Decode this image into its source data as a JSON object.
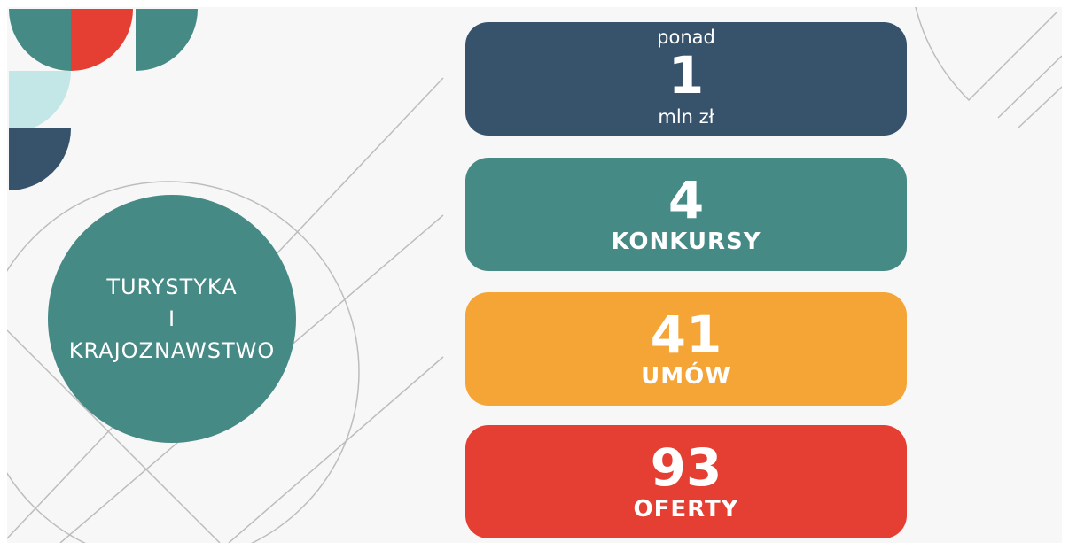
{
  "circle": {
    "lines": [
      "TURYSTYKA",
      "I",
      "KRAJOZNAWSTWO"
    ]
  },
  "cards": [
    {
      "top": "ponad",
      "value": 1,
      "bottom": "mln zł",
      "color": "#37536b"
    },
    {
      "value": 4,
      "bottom": "KONKURSY",
      "color": "#468a85"
    },
    {
      "value": 41,
      "bottom": "UMÓW",
      "color": "#f4a535"
    },
    {
      "value": 93,
      "bottom": "OFERTY",
      "color": "#e53e32"
    }
  ]
}
